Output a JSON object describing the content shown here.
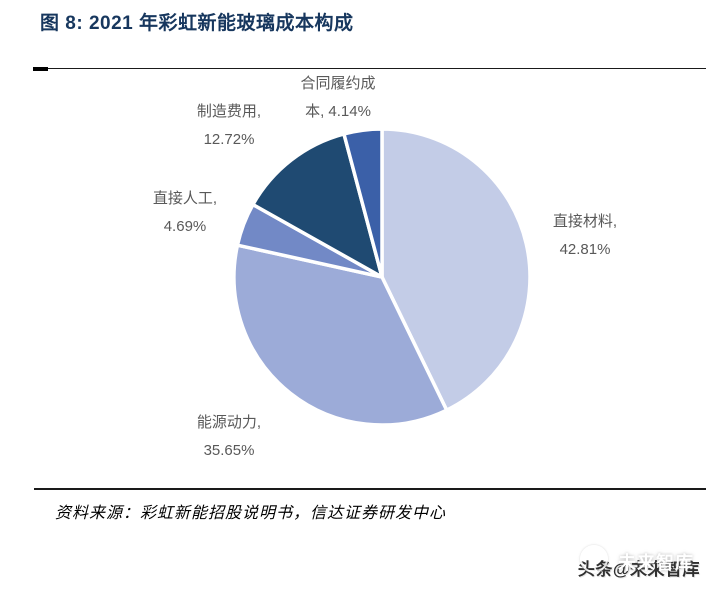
{
  "figure": {
    "title": "图 8:  2021 年彩虹新能玻璃成本构成",
    "source": "资料来源：彩虹新能招股说明书，信达证券研发中心",
    "watermark_text": "头条@未来智库",
    "watermark_overlay": "未来智库"
  },
  "chart_data": {
    "type": "pie",
    "title": "2021 年彩虹新能玻璃成本构成",
    "categories": [
      "直接材料",
      "能源动力",
      "直接人工",
      "制造费用",
      "合同履约成本"
    ],
    "values": [
      42.81,
      35.65,
      4.69,
      12.72,
      4.14
    ],
    "unit": "%",
    "colors": [
      "#c3cce7",
      "#9cabd8",
      "#7289c6",
      "#1f4a72",
      "#3b60a8"
    ],
    "start_angle_deg": 0,
    "direction": "clockwise",
    "legend_position": "none",
    "slice_border_color": "#ffffff",
    "label_color": "#595959",
    "labels_display": [
      {
        "line1": "直接材料,",
        "line2": "42.81%"
      },
      {
        "line1": "能源动力,",
        "line2": "35.65%"
      },
      {
        "line1": "直接人工,",
        "line2": "4.69%"
      },
      {
        "line1": "制造费用,",
        "line2": "12.72%"
      },
      {
        "line1": "合同履约成",
        "line2": "本, 4.14%"
      }
    ]
  }
}
